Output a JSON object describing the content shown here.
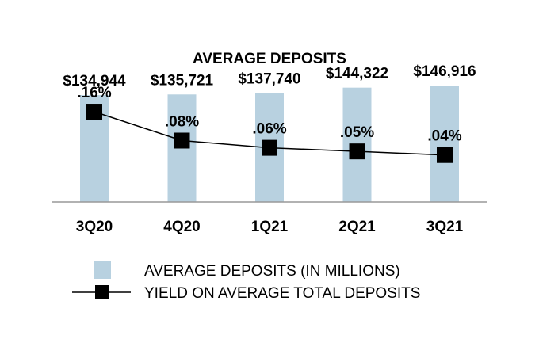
{
  "chart_data": {
    "type": "bar",
    "title": "AVERAGE DEPOSITS",
    "categories": [
      "3Q20",
      "4Q20",
      "1Q21",
      "2Q21",
      "3Q21"
    ],
    "series": [
      {
        "name": "AVERAGE DEPOSITS (IN MILLIONS)",
        "kind": "bar",
        "color": "#b8d1e0",
        "values": [
          134944,
          135721,
          137740,
          144322,
          146916
        ],
        "labels": [
          "$134,944",
          "$135,721",
          "$137,740",
          "$144,322",
          "$146,916"
        ]
      },
      {
        "name": "YIELD ON AVERAGE TOTAL DEPOSITS",
        "kind": "line",
        "color": "#000000",
        "values": [
          0.16,
          0.08,
          0.06,
          0.05,
          0.04
        ],
        "labels": [
          ".16%",
          ".08%",
          ".06%",
          ".05%",
          ".04%"
        ]
      }
    ],
    "bar_axis": {
      "ylim": [
        0,
        155000
      ]
    },
    "line_axis": {
      "ylim": [
        -0.09,
        0.25
      ]
    },
    "xlabel": "",
    "ylabel": "",
    "grid": false,
    "legend_position": "bottom"
  }
}
